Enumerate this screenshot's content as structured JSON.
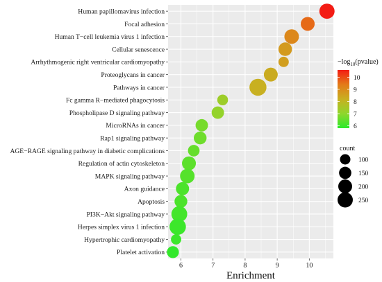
{
  "chart_data": {
    "type": "scatter",
    "xlabel": "Enrichment",
    "ylabel": "",
    "xlim": [
      5.6,
      10.75
    ],
    "x_ticks": [
      6,
      7,
      8,
      9,
      10
    ],
    "grid": true,
    "legend_placement": "right",
    "categories": [
      "Human papillomavirus infection",
      "Focal adhesion",
      "Human T−cell leukemia virus 1 infection",
      "Cellular senescence",
      "Arrhythmogenic right ventricular cardiomyopathy",
      "Proteoglycans in cancer",
      "Pathways in cancer",
      "Fc gamma R−mediated phagocytosis",
      "Phospholipase D signaling pathway",
      "MicroRNAs in cancer",
      "Rap1 signaling pathway",
      "AGE−RAGE signaling pathway in diabetic complications",
      "Regulation of actin cytoskeleton",
      "MAPK signaling pathway",
      "Axon guidance",
      "Apoptosis",
      "PI3K−Akt signaling pathway",
      "Herpes simplex virus 1 infection",
      "Hypertrophic cardiomyopathy",
      "Platelet activation"
    ],
    "x": [
      10.55,
      9.95,
      9.45,
      9.25,
      9.2,
      8.8,
      8.4,
      7.3,
      7.15,
      6.65,
      6.6,
      6.4,
      6.25,
      6.2,
      6.05,
      6.0,
      5.95,
      5.9,
      5.85,
      5.75
    ],
    "count": [
      120,
      100,
      110,
      95,
      55,
      100,
      150,
      60,
      80,
      80,
      85,
      70,
      100,
      110,
      90,
      85,
      130,
      140,
      55,
      75
    ],
    "pvalue_neg_log10": [
      10.6,
      9.6,
      9.1,
      8.7,
      8.6,
      8.3,
      8.2,
      7.3,
      7.1,
      6.7,
      6.6,
      6.5,
      6.4,
      6.3,
      6.2,
      6.2,
      6.1,
      6.0,
      6.0,
      5.9
    ],
    "color_legend": {
      "title_prefix": "−log",
      "title_sub": "10",
      "title_suffix": "(pvalue)",
      "ticks": [
        "6",
        "7",
        "8",
        "9",
        "10"
      ],
      "range": [
        5.8,
        10.6
      ],
      "colors": [
        "#2bea2b",
        "#8fd62c",
        "#c8b021",
        "#e37a19",
        "#f31c14"
      ]
    },
    "size_legend": {
      "title": "count",
      "values": [
        100,
        150,
        200,
        250
      ],
      "labels": [
        "100",
        "150",
        "200",
        "250"
      ]
    }
  }
}
